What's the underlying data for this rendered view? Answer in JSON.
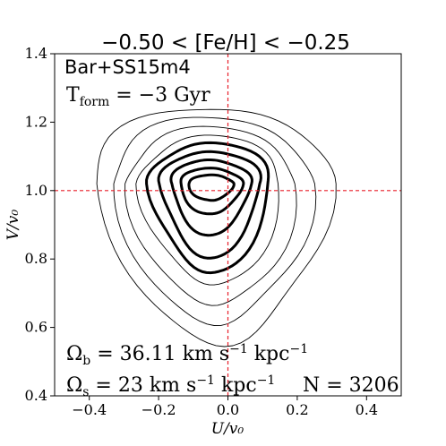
{
  "chart_data": {
    "type": "contour",
    "title": "−0.50 < [Fe/H] < −0.25",
    "xlabel": "U/v₀",
    "ylabel": "V/v₀",
    "xlim": [
      -0.5,
      0.5
    ],
    "ylim": [
      0.4,
      1.4
    ],
    "xticks": [
      -0.4,
      -0.2,
      0.0,
      0.2,
      0.4
    ],
    "yticks": [
      0.4,
      0.6,
      0.8,
      1.0,
      1.2,
      1.4
    ],
    "xtick_labels": [
      "−0.4",
      "−0.2",
      "0.0",
      "0.2",
      "0.4"
    ],
    "ytick_labels": [
      "0.4",
      "0.6",
      "0.8",
      "1.0",
      "1.2",
      "1.4"
    ],
    "reference_lines": {
      "x": 0.0,
      "y": 1.0,
      "color": "#e8202a",
      "style": "dashed"
    },
    "center": [
      -0.05,
      1.02
    ],
    "contours": [
      {
        "level": 1,
        "weight": "thin",
        "hw": 0.345,
        "up": 0.225,
        "down": 0.46,
        "tilt": 0.04
      },
      {
        "level": 2,
        "weight": "thin",
        "hw": 0.29,
        "up": 0.195,
        "down": 0.41,
        "tilt": 0.03
      },
      {
        "level": 3,
        "weight": "thin",
        "hw": 0.245,
        "up": 0.165,
        "down": 0.36,
        "tilt": 0.02
      },
      {
        "level": 4,
        "weight": "thin",
        "hw": 0.205,
        "up": 0.14,
        "down": 0.3,
        "tilt": 0.01
      },
      {
        "level": 5,
        "weight": "thick",
        "hw": 0.175,
        "up": 0.12,
        "down": 0.26,
        "tilt": 0.0
      },
      {
        "level": 6,
        "weight": "thick",
        "hw": 0.145,
        "up": 0.095,
        "down": 0.215,
        "tilt": 0.0
      },
      {
        "level": 7,
        "weight": "thick",
        "hw": 0.115,
        "up": 0.07,
        "down": 0.15,
        "tilt": 0.0
      },
      {
        "level": 8,
        "weight": "thick",
        "hw": 0.09,
        "up": 0.045,
        "down": 0.09,
        "tilt": 0.0
      },
      {
        "level": 9,
        "weight": "thick",
        "hw": 0.065,
        "up": 0.025,
        "down": 0.05,
        "tilt": 0.0
      }
    ],
    "annotations": {
      "model": "Bar+SS15m4",
      "t_form": "T_form = −3 Gyr",
      "omega_b": "Ω_b = 36.11 km s⁻¹ kpc⁻¹",
      "omega_s": "Ω_s = 23 km s⁻¹ kpc⁻¹",
      "n_stars": "N = 3206"
    }
  }
}
